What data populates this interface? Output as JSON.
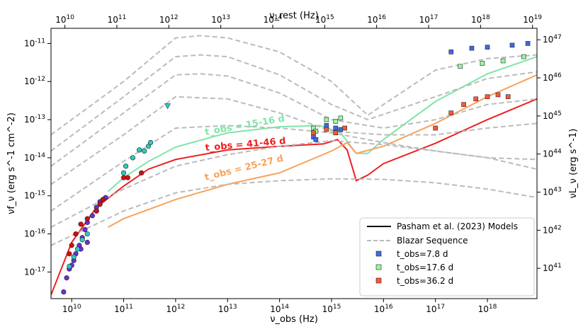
{
  "chart_data": {
    "type": "scatter",
    "title": "",
    "x_axis_bottom": {
      "label": "ν_obs (Hz)",
      "scale": "log",
      "range": [
        4000000000.0,
        9e+18
      ],
      "tick_labels": [
        "10^10",
        "10^11",
        "10^12",
        "10^13",
        "10^14",
        "10^15",
        "10^16",
        "10^17",
        "10^18"
      ]
    },
    "x_axis_top": {
      "label": "ν_rest (Hz)",
      "scale": "log",
      "range": [
        5400000000.0,
        1.22e+19
      ],
      "tick_labels": [
        "10^10",
        "10^11",
        "10^12",
        "10^13",
        "10^14",
        "10^15",
        "10^16",
        "10^17",
        "10^18",
        "10^19"
      ]
    },
    "y_axis_left": {
      "label": "νf_ν (erg s^-1 cm^-2)",
      "scale": "log",
      "range": [
        2e-18,
        2.5e-11
      ],
      "tick_labels": [
        "10^-11",
        "10^-12",
        "10^-13",
        "10^-14",
        "10^-15",
        "10^-16",
        "10^-17"
      ]
    },
    "y_axis_right": {
      "label": "νL_ν (erg s^-1)",
      "scale": "log",
      "range": [
        1.6e+40,
        2e+47
      ],
      "tick_labels": [
        "10^47",
        "10^46",
        "10^45",
        "10^44",
        "10^43",
        "10^42",
        "10^41"
      ]
    },
    "legend": {
      "position": "bottom-right",
      "entries": [
        {
          "label": "Pasham et al. (2023) Models",
          "style": "solid",
          "color": "#000000"
        },
        {
          "label": "Blazar Sequence",
          "style": "dashed",
          "color": "#bbbbbb"
        },
        {
          "label": "t_obs=7.8 d",
          "style": "marker",
          "color": "#4169e1"
        },
        {
          "label": "t_obs=17.6 d",
          "style": "marker",
          "color": "#98fb98"
        },
        {
          "label": "t_obs=36.2 d",
          "style": "marker",
          "color": "#ff5733"
        }
      ]
    },
    "annotations": [
      {
        "text": "t_obs = 15-16 d",
        "color": "#7fe5a8"
      },
      {
        "text": "t_obs = 41-46 d",
        "color": "#ee2020"
      },
      {
        "text": "t_obs = 25-27 d",
        "color": "#f7a35c"
      }
    ],
    "series": [
      {
        "name": "Model 41-46 d",
        "type": "line",
        "color": "#ee2020",
        "points": [
          [
            4000000000.0,
            2.5e-18
          ],
          [
            10000000000.0,
            6e-17
          ],
          [
            30000000000.0,
            5e-16
          ],
          [
            100000000000.0,
            1.8e-15
          ],
          [
            300000000000.0,
            5e-15
          ],
          [
            1000000000000.0,
            9e-15
          ],
          [
            10000000000000.0,
            1.6e-14
          ],
          [
            100000000000000.0,
            2e-14
          ],
          [
            700000000000000.0,
            2.3e-14
          ],
          [
            1300000000000000.0,
            3e-14
          ],
          [
            2000000000000000.0,
            1.6e-14
          ],
          [
            3000000000000000.0,
            2.5e-15
          ],
          [
            5000000000000000.0,
            3.5e-15
          ],
          [
            1e+16,
            7e-15
          ],
          [
            1e+17,
            2.4e-14
          ],
          [
            1e+18,
            1e-13
          ],
          [
            9e+18,
            3.5e-13
          ]
        ]
      },
      {
        "name": "Model 15-16 d",
        "type": "line",
        "color": "#7fe5a8",
        "points": [
          [
            50000000000.0,
            1.3e-15
          ],
          [
            100000000000.0,
            3e-15
          ],
          [
            300000000000.0,
            8e-15
          ],
          [
            1000000000000.0,
            1.9e-14
          ],
          [
            10000000000000.0,
            4.5e-14
          ],
          [
            100000000000000.0,
            6.5e-14
          ],
          [
            600000000000000.0,
            7e-14
          ],
          [
            1500000000000000.0,
            4.5e-14
          ],
          [
            3000000000000000.0,
            1.3e-14
          ],
          [
            5000000000000000.0,
            1.3e-14
          ],
          [
            1e+16,
            3e-14
          ],
          [
            1e+17,
            3e-13
          ],
          [
            1e+18,
            1.6e-12
          ],
          [
            9e+18,
            4.5e-12
          ]
        ]
      },
      {
        "name": "Model 25-27 d",
        "type": "line",
        "color": "#f7a35c",
        "points": [
          [
            50000000000.0,
            1.5e-16
          ],
          [
            100000000000.0,
            2.5e-16
          ],
          [
            1000000000000.0,
            8e-16
          ],
          [
            10000000000000.0,
            2e-15
          ],
          [
            100000000000000.0,
            4e-15
          ],
          [
            1000000000000000.0,
            1.5e-14
          ],
          [
            2000000000000000.0,
            2.5e-14
          ],
          [
            3000000000000000.0,
            1.3e-14
          ],
          [
            1e+16,
            2e-14
          ],
          [
            1e+17,
            8e-14
          ],
          [
            1e+18,
            4e-13
          ],
          [
            9e+18,
            1.5e-12
          ]
        ]
      },
      {
        "name": "Blazar Sequence",
        "type": "line",
        "style": "dashed",
        "color": "#bbbbbb",
        "curves": [
          [
            [
              4000000000.0,
              4e-14
            ],
            [
              100000000000.0,
              1e-12
            ],
            [
              1000000000000.0,
              1.4e-11
            ],
            [
              3000000000000.0,
              1.6e-11
            ],
            [
              10000000000000.0,
              1.4e-11
            ],
            [
              100000000000000.0,
              6e-12
            ],
            [
              1000000000000000.0,
              1e-12
            ],
            [
              5000000000000000.0,
              1.3e-13
            ],
            [
              1e+16,
              2.5e-13
            ],
            [
              1e+17,
              2e-12
            ],
            [
              1e+18,
              4e-12
            ],
            [
              9e+18,
              5e-12
            ]
          ],
          [
            [
              4000000000.0,
              1.5e-14
            ],
            [
              100000000000.0,
              4e-13
            ],
            [
              1000000000000.0,
              4.5e-12
            ],
            [
              3000000000000.0,
              5e-12
            ],
            [
              10000000000000.0,
              4.5e-12
            ],
            [
              100000000000000.0,
              1.5e-12
            ],
            [
              1000000000000000.0,
              2.5e-13
            ],
            [
              5000000000000000.0,
              1e-13
            ],
            [
              1e+17,
              4e-13
            ],
            [
              1e+18,
              1.2e-12
            ],
            [
              9e+18,
              1.8e-12
            ]
          ],
          [
            [
              4000000000.0,
              6e-15
            ],
            [
              100000000000.0,
              1.5e-13
            ],
            [
              1000000000000.0,
              1.5e-12
            ],
            [
              3000000000000.0,
              1.6e-12
            ],
            [
              10000000000000.0,
              1.4e-12
            ],
            [
              100000000000000.0,
              5e-13
            ],
            [
              1000000000000000.0,
              1e-13
            ],
            [
              1e+16,
              6e-14
            ],
            [
              1e+17,
              1e-13
            ],
            [
              1e+18,
              2.5e-13
            ],
            [
              9e+18,
              3.5e-13
            ]
          ],
          [
            [
              4000000000.0,
              2e-15
            ],
            [
              100000000000.0,
              4e-14
            ],
            [
              1000000000000.0,
              4e-13
            ],
            [
              10000000000000.0,
              3.5e-13
            ],
            [
              100000000000000.0,
              1.5e-13
            ],
            [
              1000000000000000.0,
              5e-14
            ],
            [
              1e+16,
              4e-14
            ],
            [
              1e+17,
              4e-14
            ],
            [
              1e+18,
              6e-14
            ],
            [
              9e+18,
              8e-14
            ]
          ],
          [
            [
              4000000000.0,
              4e-16
            ],
            [
              100000000000.0,
              8e-15
            ],
            [
              1000000000000.0,
              6e-14
            ],
            [
              10000000000000.0,
              7e-14
            ],
            [
              100000000000000.0,
              6e-14
            ],
            [
              1000000000000000.0,
              4.5e-14
            ],
            [
              1e+16,
              2.5e-14
            ],
            [
              1e+17,
              1.5e-14
            ],
            [
              1e+18,
              1e-14
            ],
            [
              9e+18,
              9e-15
            ]
          ],
          [
            [
              4000000000.0,
              1.5e-16
            ],
            [
              100000000000.0,
              1.5e-15
            ],
            [
              1000000000000.0,
              6e-15
            ],
            [
              10000000000000.0,
              1.2e-14
            ],
            [
              100000000000000.0,
              2e-14
            ],
            [
              1000000000000000.0,
              2.8e-14
            ],
            [
              1e+16,
              2.2e-14
            ],
            [
              1e+17,
              1.5e-14
            ],
            [
              1e+18,
              1e-14
            ],
            [
              9e+18,
              5e-15
            ]
          ],
          [
            [
              4000000000.0,
              5e-17
            ],
            [
              100000000000.0,
              4e-16
            ],
            [
              1000000000000.0,
              1.2e-15
            ],
            [
              10000000000000.0,
              2e-15
            ],
            [
              100000000000000.0,
              2.5e-15
            ],
            [
              1000000000000000.0,
              2.8e-15
            ],
            [
              1e+16,
              2.7e-15
            ],
            [
              1e+17,
              2.2e-15
            ],
            [
              1e+18,
              1.5e-15
            ],
            [
              9e+18,
              9e-16
            ]
          ]
        ]
      },
      {
        "name": "t_obs=7.8 d",
        "type": "scatter",
        "color": "#4169e1",
        "points": [
          [
            450000000000000.0,
            3.5e-14
          ],
          [
            500000000000000.0,
            3e-14
          ],
          [
            800000000000000.0,
            7e-14
          ],
          [
            1200000000000000.0,
            6e-14
          ],
          [
            1500000000000000.0,
            5.5e-14
          ],
          [
            2e+17,
            6e-12
          ],
          [
            5e+17,
            7.5e-12
          ],
          [
            1e+18,
            8e-12
          ],
          [
            3e+18,
            9e-12
          ],
          [
            6e+18,
            1e-11
          ]
        ]
      },
      {
        "name": "t_obs=17.6 d",
        "type": "scatter",
        "color": "#98fb98",
        "points": [
          [
            450000000000000.0,
            6e-14
          ],
          [
            500000000000000.0,
            5e-14
          ],
          [
            800000000000000.0,
            1e-13
          ],
          [
            1200000000000000.0,
            9e-14
          ],
          [
            1500000000000000.0,
            1.1e-13
          ],
          [
            3e+17,
            2.5e-12
          ],
          [
            8e+17,
            3e-12
          ],
          [
            2e+18,
            3.5e-12
          ],
          [
            5e+18,
            4.5e-12
          ]
        ]
      },
      {
        "name": "t_obs=36.2 d",
        "type": "scatter",
        "color": "#ff5733",
        "points": [
          [
            450000000000000.0,
            4.5e-14
          ],
          [
            800000000000000.0,
            5.5e-14
          ],
          [
            1200000000000000.0,
            4.5e-14
          ],
          [
            1800000000000000.0,
            6e-14
          ],
          [
            1e+17,
            6e-14
          ],
          [
            2e+17,
            1.5e-13
          ],
          [
            3.5e+17,
            2.5e-13
          ],
          [
            6e+17,
            3.5e-13
          ],
          [
            1e+18,
            4e-13
          ],
          [
            1.6e+18,
            4.5e-13
          ],
          [
            2.5e+18,
            4e-13
          ]
        ]
      },
      {
        "name": "Radio archival",
        "type": "scatter",
        "color": "#6a2fd6",
        "points": [
          [
            7000000000.0,
            3e-18
          ],
          [
            8000000000.0,
            7e-18
          ],
          [
            9000000000.0,
            1.2e-17
          ],
          [
            10000000000.0,
            1.5e-17
          ],
          [
            11000000000.0,
            2e-17
          ],
          [
            12000000000.0,
            3e-17
          ],
          [
            14000000000.0,
            5e-17
          ],
          [
            16000000000.0,
            8e-17
          ],
          [
            18000000000.0,
            1.3e-16
          ],
          [
            20000000000.0,
            2e-16
          ],
          [
            25000000000.0,
            3e-16
          ],
          [
            30000000000.0,
            5e-16
          ],
          [
            35000000000.0,
            7e-16
          ],
          [
            40000000000.0,
            8e-16
          ],
          [
            45000000000.0,
            9e-16
          ],
          [
            20000000000.0,
            6e-17
          ],
          [
            15000000000.0,
            4e-17
          ]
        ]
      },
      {
        "name": "Radio archival (cyan)",
        "type": "scatter",
        "color": "#2fc9c2",
        "points": [
          [
            9000000000.0,
            1.4e-17
          ],
          [
            11000000000.0,
            2.5e-17
          ],
          [
            13000000000.0,
            4e-17
          ],
          [
            16000000000.0,
            7e-17
          ],
          [
            20000000000.0,
            1e-16
          ],
          [
            30000000000.0,
            4e-16
          ],
          [
            100000000000.0,
            4e-15
          ],
          [
            110000000000.0,
            6e-15
          ],
          [
            150000000000.0,
            1e-14
          ],
          [
            200000000000.0,
            1.6e-14
          ],
          [
            250000000000.0,
            1.5e-14
          ],
          [
            300000000000.0,
            2e-14
          ],
          [
            330000000000.0,
            2.5e-14
          ]
        ]
      },
      {
        "name": "Radio archival (red)",
        "type": "scatter",
        "color": "#cc1010",
        "points": [
          [
            9000000000.0,
            3e-17
          ],
          [
            10000000000.0,
            5e-17
          ],
          [
            12000000000.0,
            1e-16
          ],
          [
            15000000000.0,
            1.8e-16
          ],
          [
            20000000000.0,
            2.5e-16
          ],
          [
            30000000000.0,
            4e-16
          ],
          [
            35000000000.0,
            6e-16
          ],
          [
            40000000000.0,
            8e-16
          ],
          [
            100000000000.0,
            3e-15
          ],
          [
            120000000000.0,
            3e-15
          ],
          [
            220000000000.0,
            4e-15
          ]
        ]
      },
      {
        "name": "Upper limit",
        "type": "scatter",
        "marker": "triangle-down",
        "color": "#2fc9c2",
        "points": [
          [
            700000000000.0,
            2.3e-13
          ]
        ]
      }
    ]
  }
}
